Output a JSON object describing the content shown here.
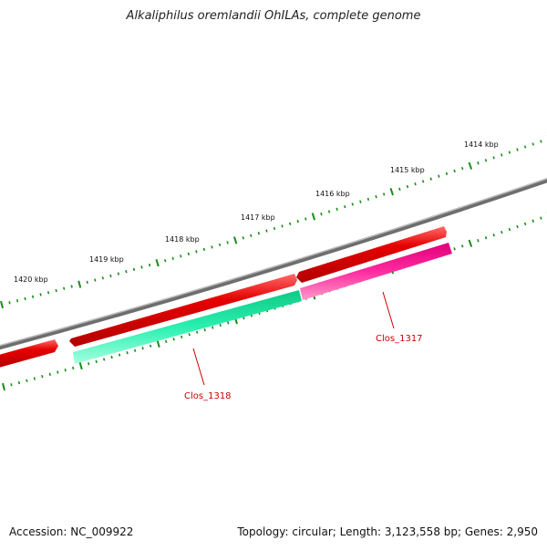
{
  "title": "Alkaliphilus oremlandii OhILAs, complete genome",
  "footer": {
    "accession": "Accession: NC_009922",
    "summary": "Topology: circular; Length: 3,123,558 bp; Genes: 2,950"
  },
  "colors": {
    "backbone": "#808080",
    "cds": "#e60000",
    "cds_light": "#ff8080",
    "gene_green": "#1ae6a0",
    "gene_pink": "#ff1a99",
    "tick": "#1a8c1a",
    "label_red": "#cc0000"
  },
  "ruler_labels": [
    "1420 kbp",
    "1419 kbp",
    "1418 kbp",
    "1417 kbp",
    "1416 kbp",
    "1415 kbp",
    "1414 kbp"
  ],
  "gene_labels": [
    "Clos_1318",
    "Clos_1317"
  ]
}
